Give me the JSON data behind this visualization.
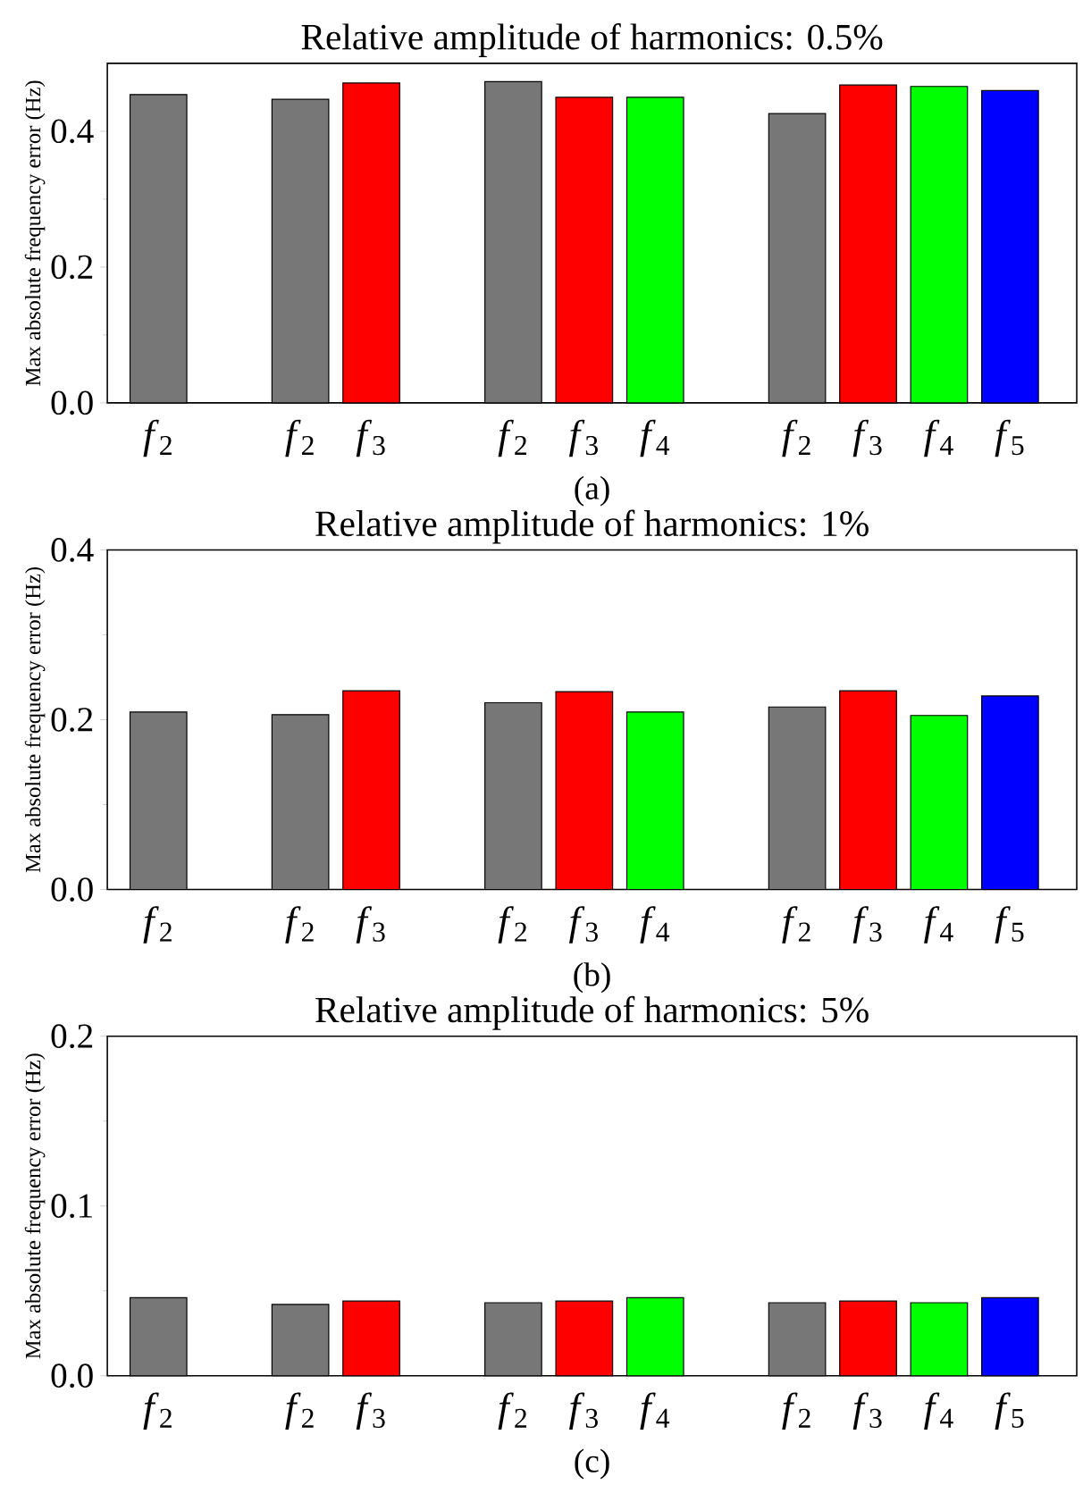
{
  "chart_data": [
    {
      "type": "bar",
      "title": "Relative amplitude of harmonics: 0.5%",
      "ylabel": "Max absolute frequency error (Hz)",
      "categories": [
        "*f*$_{2}$",
        null,
        "*f*$_{2}$",
        "*f*$_{3}$",
        null,
        "*f*$_{2}$",
        "*f*$_{3}$",
        "*f*$_{4}$",
        null,
        "*f*$_{2}$",
        "*f*$_{3}$",
        "*f*$_{4}$",
        "*f*$_{5}$"
      ],
      "values": [
        0.454,
        null,
        0.447,
        0.471,
        null,
        0.473,
        0.45,
        0.45,
        null,
        0.426,
        0.468,
        0.466,
        0.46
      ],
      "colors": [
        "#777777",
        null,
        "#777777",
        "#ff0000",
        null,
        "#777777",
        "#ff0000",
        "#00ff00",
        null,
        "#777777",
        "#ff0000",
        "#00ff00",
        "#0000ff"
      ],
      "ylim": [
        0,
        0.5
      ],
      "yticks": [
        {
          "value": 0,
          "label": "0.0"
        },
        {
          "value": 0.2,
          "label": "0.2"
        },
        {
          "value": 0.4,
          "label": "0.4"
        }
      ],
      "annotations": [
        "(a)"
      ]
    },
    {
      "type": "bar",
      "title": "Relative amplitude of harmonics: 1%",
      "ylabel": "Max absolute frequency error (Hz)",
      "categories": [
        "*f*$_{2}$",
        null,
        "*f*$_{2}$",
        "*f*$_{3}$",
        null,
        "*f*$_{2}$",
        "*f*$_{3}$",
        "*f*$_{4}$",
        null,
        "*f*$_{2}$",
        "*f*$_{3}$",
        "*f*$_{4}$",
        "*f*$_{5}$"
      ],
      "values": [
        0.209,
        null,
        0.206,
        0.234,
        null,
        0.22,
        0.233,
        0.209,
        null,
        0.215,
        0.234,
        0.205,
        0.228
      ],
      "colors": [
        "#777777",
        null,
        "#777777",
        "#ff0000",
        null,
        "#777777",
        "#ff0000",
        "#00ff00",
        null,
        "#777777",
        "#ff0000",
        "#00ff00",
        "#0000ff"
      ],
      "ylim": [
        0,
        0.4
      ],
      "yticks": [
        {
          "value": 0,
          "label": "0.0"
        },
        {
          "value": 0.2,
          "label": "0.2"
        },
        {
          "value": 0.4,
          "label": "0.4"
        }
      ],
      "annotations": [
        "(b)"
      ]
    },
    {
      "type": "bar",
      "title": "Relative amplitude of harmonics: 5%",
      "ylabel": "Max absolute frequency error (Hz)",
      "categories": [
        "*f*$_{2}$",
        null,
        "*f*$_{2}$",
        "*f*$_{3}$",
        null,
        "*f*$_{2}$",
        "*f*$_{3}$",
        "*f*$_{4}$",
        null,
        "*f*$_{2}$",
        "*f*$_{3}$",
        "*f*$_{4}$",
        "*f*$_{5}$"
      ],
      "values": [
        0.046,
        null,
        0.042,
        0.044,
        null,
        0.043,
        0.044,
        0.046,
        null,
        0.043,
        0.044,
        0.043,
        0.046
      ],
      "colors": [
        "#777777",
        null,
        "#777777",
        "#ff0000",
        null,
        "#777777",
        "#ff0000",
        "#00ff00",
        null,
        "#777777",
        "#ff0000",
        "#00ff00",
        "#0000ff"
      ],
      "ylim": [
        0,
        0.2
      ],
      "yticks": [
        {
          "value": 0,
          "label": "0.0"
        },
        {
          "value": 0.1,
          "label": "0.1"
        },
        {
          "value": 0.2,
          "label": "0.2"
        }
      ],
      "annotations": [
        "(c)"
      ]
    }
  ]
}
